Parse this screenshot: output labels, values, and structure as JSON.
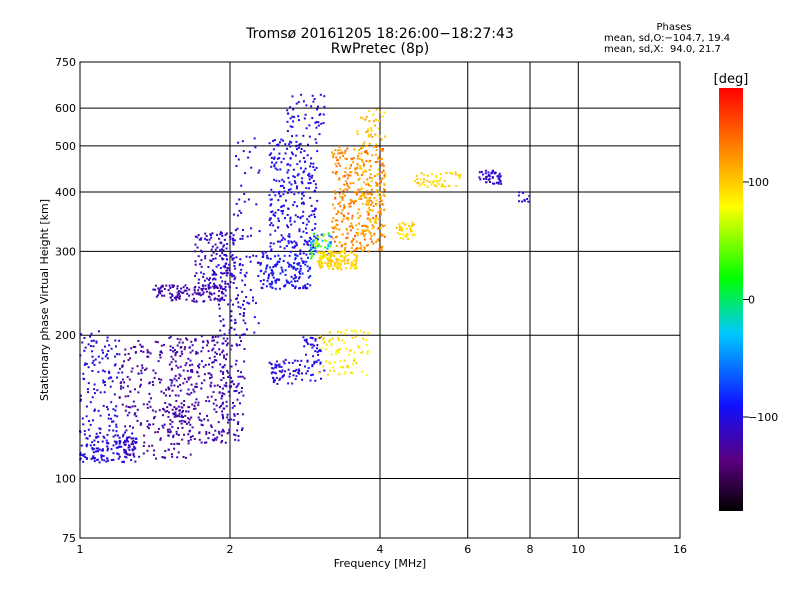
{
  "header": {
    "title_line1": "Tromsø 20161205 18:26:00−18:27:43",
    "title_line2": "RwPretec (8p)"
  },
  "stats": {
    "heading": "Phases",
    "line_o": "mean, sd,O:−104.7, 19.4",
    "line_x": "mean, sd,X:  94.0, 21.7"
  },
  "chart_data": {
    "type": "scatter",
    "xlabel": "Frequency [MHz]",
    "ylabel": "Stationary phase Virtual Height [km]",
    "x_scale": "log",
    "y_scale": "log",
    "xlim": [
      1,
      16
    ],
    "ylim": [
      75,
      750
    ],
    "x_ticks": [
      1,
      2,
      4,
      6,
      8,
      10,
      16
    ],
    "x_tick_labels": [
      "1",
      "2",
      "4",
      "6",
      "8",
      "10",
      "16"
    ],
    "y_ticks": [
      75,
      100,
      200,
      300,
      400,
      500,
      600,
      750
    ],
    "y_tick_labels": [
      "75",
      "100",
      "200",
      "300",
      "400",
      "500",
      "600",
      "750"
    ],
    "grid": true,
    "colorbar": {
      "label": "[deg]",
      "min": -180,
      "max": 180,
      "ticks": [
        100,
        0,
        -100
      ],
      "tick_labels": [
        "100",
        "0",
        "−100"
      ],
      "colors": [
        "#000000",
        "#5a0080",
        "#1010ff",
        "#00c8ff",
        "#00ff00",
        "#ffff00",
        "#ff8000",
        "#ff0000"
      ]
    },
    "clusters": [
      {
        "f": [
          1.0,
          1.3
        ],
        "h": [
          108,
          125
        ],
        "phase": [
          -110,
          -95
        ],
        "n": 150
      },
      {
        "f": [
          1.0,
          1.2
        ],
        "h": [
          125,
          205
        ],
        "phase": [
          -110,
          -95
        ],
        "n": 120
      },
      {
        "f": [
          1.2,
          1.7
        ],
        "h": [
          110,
          195
        ],
        "phase": [
          -135,
          -115
        ],
        "n": 260
      },
      {
        "f": [
          1.5,
          2.0
        ],
        "h": [
          118,
          200
        ],
        "phase": [
          -130,
          -112
        ],
        "n": 240
      },
      {
        "f": [
          1.4,
          1.95
        ],
        "h": [
          235,
          255
        ],
        "phase": [
          -130,
          -110
        ],
        "n": 130
      },
      {
        "f": [
          1.7,
          2.05
        ],
        "h": [
          250,
          330
        ],
        "phase": [
          -125,
          -100
        ],
        "n": 130
      },
      {
        "f": [
          1.9,
          2.15
        ],
        "h": [
          120,
          320
        ],
        "phase": [
          -125,
          -105
        ],
        "n": 160
      },
      {
        "f": [
          2.0,
          2.3
        ],
        "h": [
          200,
          520
        ],
        "phase": [
          -115,
          -95
        ],
        "n": 70
      },
      {
        "f": [
          2.3,
          2.9
        ],
        "h": [
          250,
          300
        ],
        "phase": [
          -110,
          -80
        ],
        "n": 150
      },
      {
        "f": [
          2.4,
          3.0
        ],
        "h": [
          300,
          520
        ],
        "phase": [
          -110,
          -90
        ],
        "n": 260
      },
      {
        "f": [
          2.6,
          3.1
        ],
        "h": [
          520,
          650
        ],
        "phase": [
          -110,
          -95
        ],
        "n": 50
      },
      {
        "f": [
          2.9,
          3.2
        ],
        "h": [
          290,
          330
        ],
        "phase": [
          -80,
          80
        ],
        "n": 60
      },
      {
        "f": [
          3.0,
          3.6
        ],
        "h": [
          275,
          300
        ],
        "phase": [
          85,
          110
        ],
        "n": 140
      },
      {
        "f": [
          3.2,
          4.1
        ],
        "h": [
          300,
          500
        ],
        "phase": [
          110,
          145
        ],
        "n": 320
      },
      {
        "f": [
          3.6,
          4.1
        ],
        "h": [
          320,
          600
        ],
        "phase": [
          90,
          120
        ],
        "n": 120
      },
      {
        "f": [
          2.4,
          2.8
        ],
        "h": [
          158,
          178
        ],
        "phase": [
          -115,
          -95
        ],
        "n": 60
      },
      {
        "f": [
          2.8,
          3.1
        ],
        "h": [
          160,
          200
        ],
        "phase": [
          -110,
          -90
        ],
        "n": 50
      },
      {
        "f": [
          3.0,
          3.8
        ],
        "h": [
          165,
          205
        ],
        "phase": [
          70,
          100
        ],
        "n": 80
      },
      {
        "f": [
          4.3,
          4.7
        ],
        "h": [
          318,
          345
        ],
        "phase": [
          85,
          105
        ],
        "n": 40
      },
      {
        "f": [
          4.7,
          5.8
        ],
        "h": [
          410,
          440
        ],
        "phase": [
          85,
          105
        ],
        "n": 50
      },
      {
        "f": [
          6.3,
          7.0
        ],
        "h": [
          415,
          445
        ],
        "phase": [
          -120,
          -100
        ],
        "n": 45
      },
      {
        "f": [
          7.6,
          8.0
        ],
        "h": [
          375,
          400
        ],
        "phase": [
          -115,
          -100
        ],
        "n": 10
      }
    ]
  }
}
